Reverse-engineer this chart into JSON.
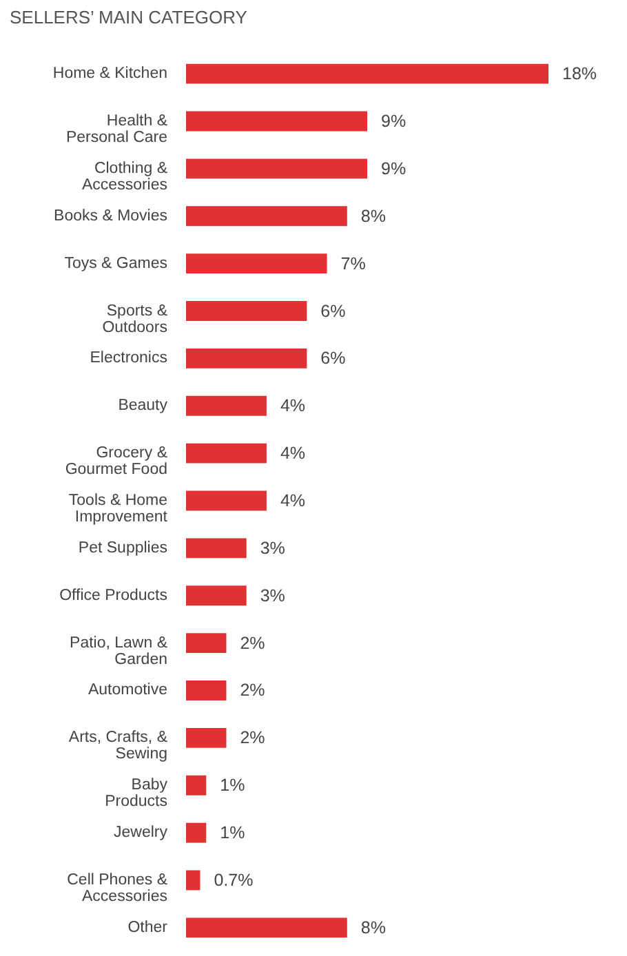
{
  "chart_data": {
    "type": "bar",
    "orientation": "horizontal",
    "title": "SELLERS’ MAIN CATEGORY",
    "categories": [
      "Home & Kitchen",
      "Health &\nPersonal Care",
      "Clothing &\nAccessories",
      "Books & Movies",
      "Toys & Games",
      "Sports &\nOutdoors",
      "Electronics",
      "Beauty",
      "Grocery &\nGourmet Food",
      "Tools & Home\nImprovement",
      "Pet Supplies",
      "Office Products",
      "Patio, Lawn &\nGarden",
      "Automotive",
      "Arts, Crafts, &\nSewing",
      "Baby\nProducts",
      "Jewelry",
      "Cell Phones &\nAccessories",
      "Other"
    ],
    "values": [
      18,
      9,
      9,
      8,
      7,
      6,
      6,
      4,
      4,
      4,
      3,
      3,
      2,
      2,
      2,
      1,
      1,
      0.7,
      8
    ],
    "value_labels": [
      "18%",
      "9%",
      "9%",
      "8%",
      "7%",
      "6%",
      "6%",
      "4%",
      "4%",
      "4%",
      "3%",
      "3%",
      "2%",
      "2%",
      "2%",
      "1%",
      "1%",
      "0.7%",
      "8%"
    ],
    "color": "#e03232"
  }
}
